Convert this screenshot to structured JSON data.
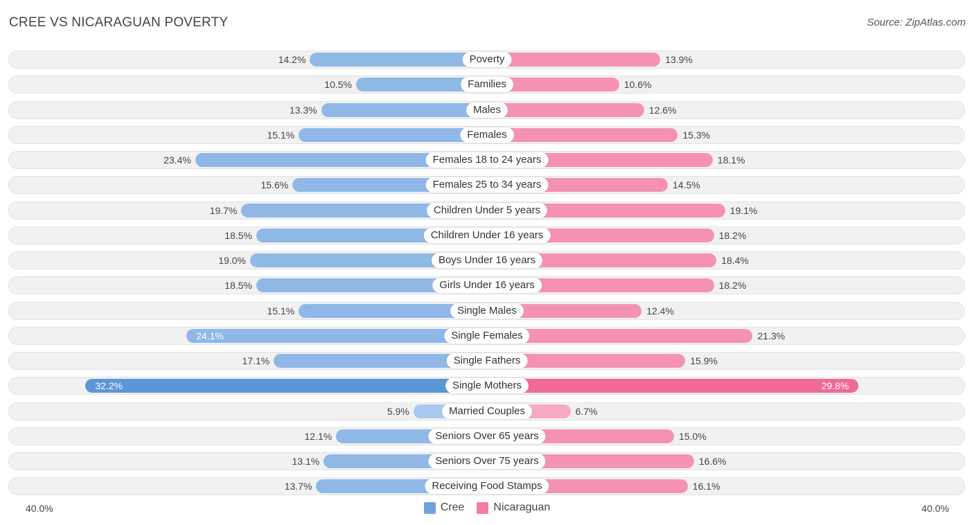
{
  "title": "CREE VS NICARAGUAN POVERTY",
  "source": "Source: ZipAtlas.com",
  "colors": {
    "cree": "#6fa3dd",
    "nicaraguan": "#f47ea2",
    "cree_light": "#a9c9ee",
    "nicaraguan_light": "#f7abc3"
  },
  "chart_data": {
    "type": "bar",
    "orientation": "horizontal-diverging",
    "title": "CREE VS NICARAGUAN POVERTY",
    "axis_min_label": "40.0%",
    "axis_max_label": "40.0%",
    "xlim": [
      0,
      40
    ],
    "series": [
      {
        "name": "Cree",
        "values": [
          14.2,
          10.5,
          13.3,
          15.1,
          23.4,
          15.6,
          19.7,
          18.5,
          19.0,
          18.5,
          15.1,
          24.1,
          17.1,
          32.2,
          5.9,
          12.1,
          13.1,
          13.7
        ]
      },
      {
        "name": "Nicaraguan",
        "values": [
          13.9,
          10.6,
          12.6,
          15.3,
          18.1,
          14.5,
          19.1,
          18.2,
          18.4,
          18.2,
          12.4,
          21.3,
          15.9,
          29.8,
          6.7,
          15.0,
          16.6,
          16.1
        ]
      }
    ],
    "value_labels": {
      "cree": [
        "14.2%",
        "10.5%",
        "13.3%",
        "15.1%",
        "23.4%",
        "15.6%",
        "19.7%",
        "18.5%",
        "19.0%",
        "18.5%",
        "15.1%",
        "24.1%",
        "17.1%",
        "32.2%",
        "5.9%",
        "12.1%",
        "13.1%",
        "13.7%"
      ],
      "nicaraguan": [
        "13.9%",
        "10.6%",
        "12.6%",
        "15.3%",
        "18.1%",
        "14.5%",
        "19.1%",
        "18.2%",
        "18.4%",
        "18.2%",
        "12.4%",
        "21.3%",
        "15.9%",
        "29.8%",
        "6.7%",
        "15.0%",
        "16.6%",
        "16.1%"
      ]
    },
    "categories": [
      "Poverty",
      "Families",
      "Males",
      "Females",
      "Females 18 to 24 years",
      "Females 25 to 34 years",
      "Children Under 5 years",
      "Children Under 16 years",
      "Boys Under 16 years",
      "Girls Under 16 years",
      "Single Males",
      "Single Females",
      "Single Fathers",
      "Single Mothers",
      "Married Couples",
      "Seniors Over 65 years",
      "Seniors Over 75 years",
      "Receiving Food Stamps"
    ],
    "legend": [
      "Cree",
      "Nicaraguan"
    ],
    "legend_position": "bottom-center"
  }
}
